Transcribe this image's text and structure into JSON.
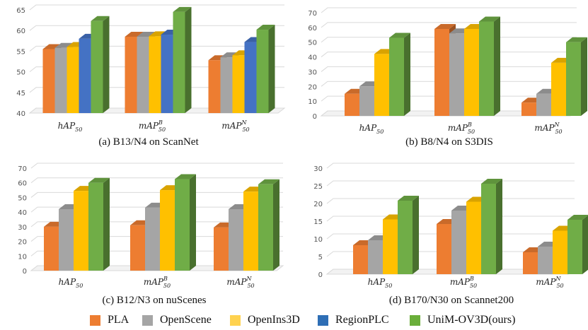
{
  "legend": {
    "items": [
      {
        "name": "PLA",
        "color": "#ED7D31"
      },
      {
        "name": "OpenScene",
        "color": "#A5A5A5"
      },
      {
        "name": "OpenIns3D",
        "color": "#FFC000"
      },
      {
        "name": "RegionPLC",
        "color": "#4472C4"
      },
      {
        "name": "UniM-OV3D(ours)",
        "color": "#70AD47"
      }
    ]
  },
  "chart_data": [
    {
      "type": "bar",
      "caption": "(a) B13/N4 on ScanNet",
      "categories": [
        "hAP50",
        "mAP50B",
        "mAP50N"
      ],
      "category_parts": [
        [
          "hAP",
          "50",
          ""
        ],
        [
          "mAP",
          "50",
          "B"
        ],
        [
          "mAP",
          "50",
          "N"
        ]
      ],
      "ylim": [
        40,
        65
      ],
      "yticks": [
        40,
        45,
        50,
        55,
        60,
        65
      ],
      "series": [
        {
          "name": "PLA",
          "values": [
            55.5,
            58.5,
            52.8
          ]
        },
        {
          "name": "OpenScene",
          "values": [
            55.8,
            58.5,
            53.5
          ]
        },
        {
          "name": "OpenIns3D",
          "values": [
            56.0,
            58.6,
            54.0
          ]
        },
        {
          "name": "RegionPLC",
          "values": [
            58.0,
            59.0,
            57.2
          ]
        },
        {
          "name": "UniM-OV3D(ours)",
          "values": [
            62.3,
            64.5,
            60.2
          ]
        }
      ]
    },
    {
      "type": "bar",
      "caption": "(b) B8/N4 on S3DIS",
      "categories": [
        "hAP50",
        "mAP50B",
        "mAP50N"
      ],
      "category_parts": [
        [
          "hAP",
          "50",
          ""
        ],
        [
          "mAP",
          "50",
          "B"
        ],
        [
          "mAP",
          "50",
          "N"
        ]
      ],
      "ylim": [
        0,
        70
      ],
      "yticks": [
        0,
        10,
        20,
        30,
        40,
        50,
        60,
        70
      ],
      "series": [
        {
          "name": "PLA",
          "values": [
            15,
            59,
            9
          ]
        },
        {
          "name": "OpenScene",
          "values": [
            20,
            56,
            15
          ]
        },
        {
          "name": "OpenIns3D",
          "values": [
            42,
            59,
            36
          ]
        },
        {
          "name": "UniM-OV3D(ours)",
          "values": [
            53,
            64,
            50
          ]
        }
      ]
    },
    {
      "type": "bar",
      "caption": "(c) B12/N3 on nuScenes",
      "categories": [
        "hAP50",
        "mAP50B",
        "mAP50N"
      ],
      "category_parts": [
        [
          "hAP",
          "50",
          ""
        ],
        [
          "mAP",
          "50",
          "B"
        ],
        [
          "mAP",
          "50",
          "N"
        ]
      ],
      "ylim": [
        0,
        70
      ],
      "yticks": [
        0,
        10,
        20,
        30,
        40,
        50,
        60,
        70
      ],
      "series": [
        {
          "name": "PLA",
          "values": [
            30,
            31,
            29.5
          ]
        },
        {
          "name": "OpenScene",
          "values": [
            42,
            43,
            42
          ]
        },
        {
          "name": "OpenIns3D",
          "values": [
            54.5,
            55,
            54
          ]
        },
        {
          "name": "UniM-OV3D(ours)",
          "values": [
            60,
            62.5,
            59
          ]
        }
      ]
    },
    {
      "type": "bar",
      "caption": "(d) B170/N30 on Scannet200",
      "categories": [
        "hAP50",
        "mAP50B",
        "mAP50N"
      ],
      "category_parts": [
        [
          "hAP",
          "50",
          ""
        ],
        [
          "mAP",
          "50",
          "B"
        ],
        [
          "mAP",
          "50",
          "N"
        ]
      ],
      "ylim": [
        0,
        30
      ],
      "yticks": [
        0,
        5,
        10,
        15,
        20,
        25,
        30
      ],
      "series": [
        {
          "name": "PLA",
          "values": [
            8.2,
            14.2,
            6.2
          ]
        },
        {
          "name": "OpenScene",
          "values": [
            9.6,
            18.0,
            7.8
          ]
        },
        {
          "name": "OpenIns3D",
          "values": [
            15.5,
            20.5,
            12.3
          ]
        },
        {
          "name": "UniM-OV3D(ours)",
          "values": [
            20.8,
            25.6,
            15.4
          ]
        }
      ]
    }
  ]
}
